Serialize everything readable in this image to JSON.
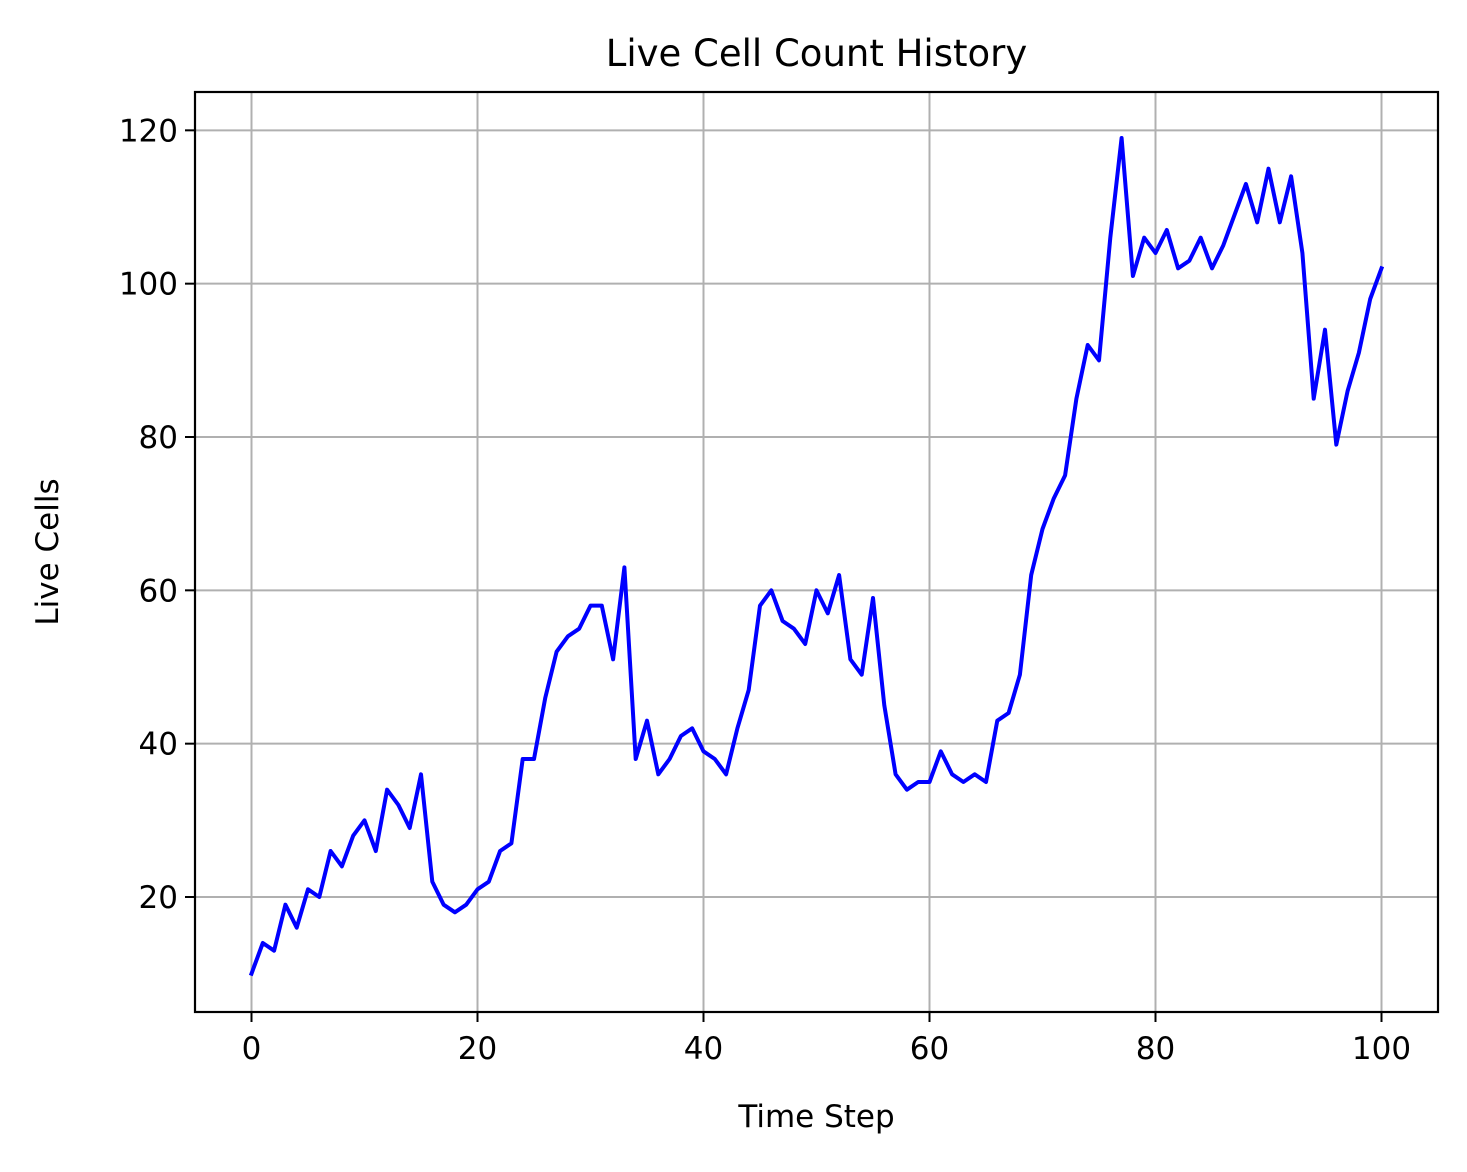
{
  "chart_data": {
    "type": "line",
    "title": "Live Cell Count History",
    "xlabel": "Time Step",
    "ylabel": "Live Cells",
    "xlim": [
      -5,
      105
    ],
    "ylim": [
      5,
      125
    ],
    "xticks": [
      0,
      20,
      40,
      60,
      80,
      100
    ],
    "xtick_labels": [
      "0",
      "20",
      "40",
      "60",
      "80",
      "100"
    ],
    "yticks": [
      20,
      40,
      60,
      80,
      100,
      120
    ],
    "ytick_labels": [
      "20",
      "40",
      "60",
      "80",
      "100",
      "120"
    ],
    "grid": true,
    "series": [
      {
        "color": "#0000ff",
        "x": [
          0,
          1,
          2,
          3,
          4,
          5,
          6,
          7,
          8,
          9,
          10,
          11,
          12,
          13,
          14,
          15,
          16,
          17,
          18,
          19,
          20,
          21,
          22,
          23,
          24,
          25,
          26,
          27,
          28,
          29,
          30,
          31,
          32,
          33,
          34,
          35,
          36,
          37,
          38,
          39,
          40,
          41,
          42,
          43,
          44,
          45,
          46,
          47,
          48,
          49,
          50,
          51,
          52,
          53,
          54,
          55,
          56,
          57,
          58,
          59,
          60,
          61,
          62,
          63,
          64,
          65,
          66,
          67,
          68,
          69,
          70,
          71,
          72,
          73,
          74,
          75,
          76,
          77,
          78,
          79,
          80,
          81,
          82,
          83,
          84,
          85,
          86,
          87,
          88,
          89,
          90,
          91,
          92,
          93,
          94,
          95,
          96,
          97,
          98,
          99,
          100
        ],
        "values": [
          10,
          14,
          13,
          19,
          16,
          21,
          20,
          26,
          24,
          28,
          30,
          26,
          34,
          32,
          29,
          36,
          22,
          19,
          18,
          19,
          21,
          22,
          26,
          27,
          38,
          38,
          46,
          52,
          54,
          55,
          58,
          58,
          51,
          63,
          38,
          43,
          36,
          38,
          41,
          42,
          39,
          38,
          36,
          42,
          47,
          58,
          60,
          56,
          55,
          53,
          60,
          57,
          62,
          51,
          49,
          59,
          45,
          36,
          34,
          35,
          35,
          39,
          36,
          35,
          36,
          35,
          43,
          44,
          49,
          62,
          68,
          72,
          75,
          85,
          92,
          90,
          106,
          119,
          101,
          106,
          104,
          107,
          102,
          103,
          106,
          102,
          105,
          109,
          113,
          108,
          115,
          108,
          114,
          104,
          85,
          94,
          79,
          86,
          91,
          98,
          102
        ]
      }
    ]
  }
}
